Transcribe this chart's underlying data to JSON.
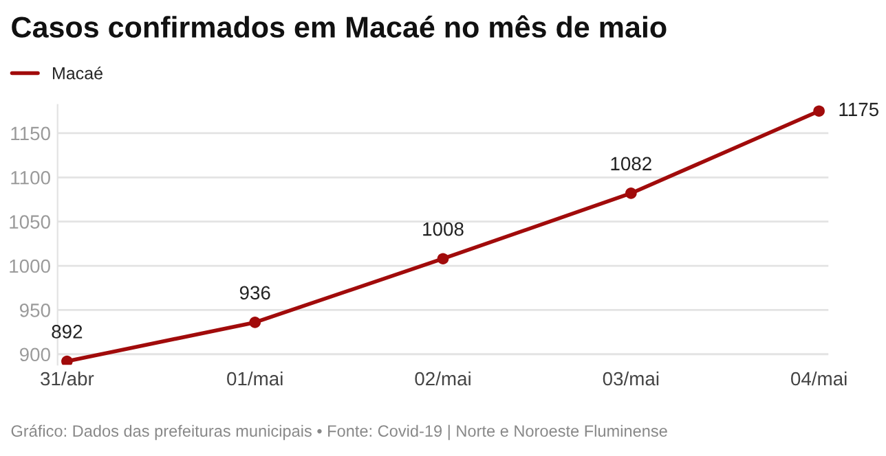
{
  "chart_data": {
    "type": "line",
    "title": "Casos confirmados em Macaé no mês de maio",
    "categories": [
      "31/abr",
      "01/mai",
      "02/mai",
      "03/mai",
      "04/mai"
    ],
    "series": [
      {
        "name": "Macaé",
        "color": "#a10b0b",
        "values": [
          892,
          936,
          1008,
          1082,
          1175
        ]
      }
    ],
    "ylim": [
      888,
      1182
    ],
    "yticks": [
      900,
      950,
      1000,
      1050,
      1100,
      1150
    ],
    "grid": "y",
    "legend": "top left",
    "marker": "circle",
    "line_style": "solid",
    "data_labels": true,
    "annotations": [
      "Gráfico: Dados das prefeituras municipais • Fonte: Covid-19 | Norte e Noroeste Fluminense"
    ]
  }
}
